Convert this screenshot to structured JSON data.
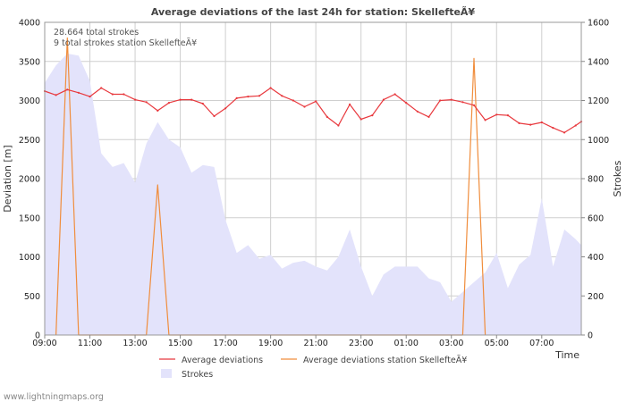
{
  "chart_data": {
    "type": "line",
    "title": "Average deviations of the last 24h for station: SkellefteÃ¥",
    "ylabel": "Deviation  [m]",
    "y2label": "Strokes",
    "xlabel": "Time",
    "ylim": [
      0,
      4000
    ],
    "y2lim": [
      0,
      1600
    ],
    "y_ticks": [
      0,
      500,
      1000,
      1500,
      2000,
      2500,
      3000,
      3500,
      4000
    ],
    "y2_ticks": [
      0,
      200,
      400,
      600,
      800,
      1000,
      1200,
      1400,
      1600
    ],
    "x_tick_labels": [
      "09:00",
      "11:00",
      "13:00",
      "15:00",
      "17:00",
      "19:00",
      "21:00",
      "23:00",
      "01:00",
      "03:00",
      "05:00",
      "07:00"
    ],
    "x_range_hours": [
      0,
      23.75
    ],
    "grid": true,
    "annotations": [
      "28.664 total strokes",
      "9 total strokes station SkellefteÃ¥"
    ],
    "footer": "www.lightningmaps.org",
    "series": [
      {
        "name": "Average deviations",
        "kind": "line",
        "axis": "left",
        "color": "#e8383d",
        "x": [
          0,
          0.5,
          1,
          1.5,
          2,
          2.5,
          3,
          3.5,
          4,
          4.5,
          5,
          5.5,
          6,
          6.5,
          7,
          7.5,
          8,
          8.5,
          9,
          9.5,
          10,
          10.5,
          11,
          11.5,
          12,
          12.5,
          13,
          13.5,
          14,
          14.5,
          15,
          15.5,
          16,
          16.5,
          17,
          17.5,
          18,
          18.5,
          19,
          19.5,
          20,
          20.5,
          21,
          21.5,
          22,
          22.5,
          23,
          23.5,
          23.75
        ],
        "values": [
          3120,
          3070,
          3140,
          3100,
          3050,
          3160,
          3080,
          3080,
          3010,
          2980,
          2870,
          2970,
          3010,
          3010,
          2960,
          2800,
          2900,
          3030,
          3050,
          3060,
          3160,
          3060,
          3000,
          2920,
          2990,
          2790,
          2680,
          2950,
          2760,
          2810,
          3010,
          3080,
          2970,
          2860,
          2790,
          3000,
          3010,
          2980,
          2940,
          2750,
          2820,
          2810,
          2710,
          2690,
          2720,
          2650,
          2590,
          2680,
          2730
        ]
      },
      {
        "name": "Average deviations station SkellefteÃ¥",
        "kind": "line",
        "axis": "left",
        "color": "#f08d3c",
        "x": [
          0.5,
          1,
          1.5,
          4.5,
          5,
          5.5,
          18.5,
          19,
          19.5
        ],
        "values": [
          0,
          3800,
          0,
          0,
          1920,
          0,
          0,
          3540,
          0
        ]
      },
      {
        "name": "Strokes",
        "kind": "area",
        "axis": "right",
        "color": "#e3e3fb",
        "x": [
          0,
          0.5,
          1,
          1.5,
          2,
          2.5,
          3,
          3.5,
          4,
          4.5,
          5,
          5.5,
          6,
          6.5,
          7,
          7.5,
          8,
          8.5,
          9,
          9.5,
          10,
          10.5,
          11,
          11.5,
          12,
          12.5,
          13,
          13.5,
          14,
          14.5,
          15,
          15.5,
          16,
          16.5,
          17,
          17.5,
          18,
          18.5,
          19,
          19.5,
          20,
          20.5,
          21,
          21.5,
          22,
          22.5,
          23,
          23.5,
          23.75
        ],
        "values": [
          1290,
          1380,
          1440,
          1430,
          1300,
          930,
          860,
          880,
          780,
          980,
          1090,
          1000,
          960,
          830,
          870,
          860,
          590,
          420,
          460,
          390,
          410,
          340,
          370,
          380,
          350,
          330,
          400,
          540,
          350,
          200,
          310,
          350,
          350,
          350,
          290,
          270,
          170,
          220,
          270,
          320,
          420,
          240,
          360,
          410,
          700,
          350,
          540,
          490,
          460
        ]
      }
    ]
  }
}
